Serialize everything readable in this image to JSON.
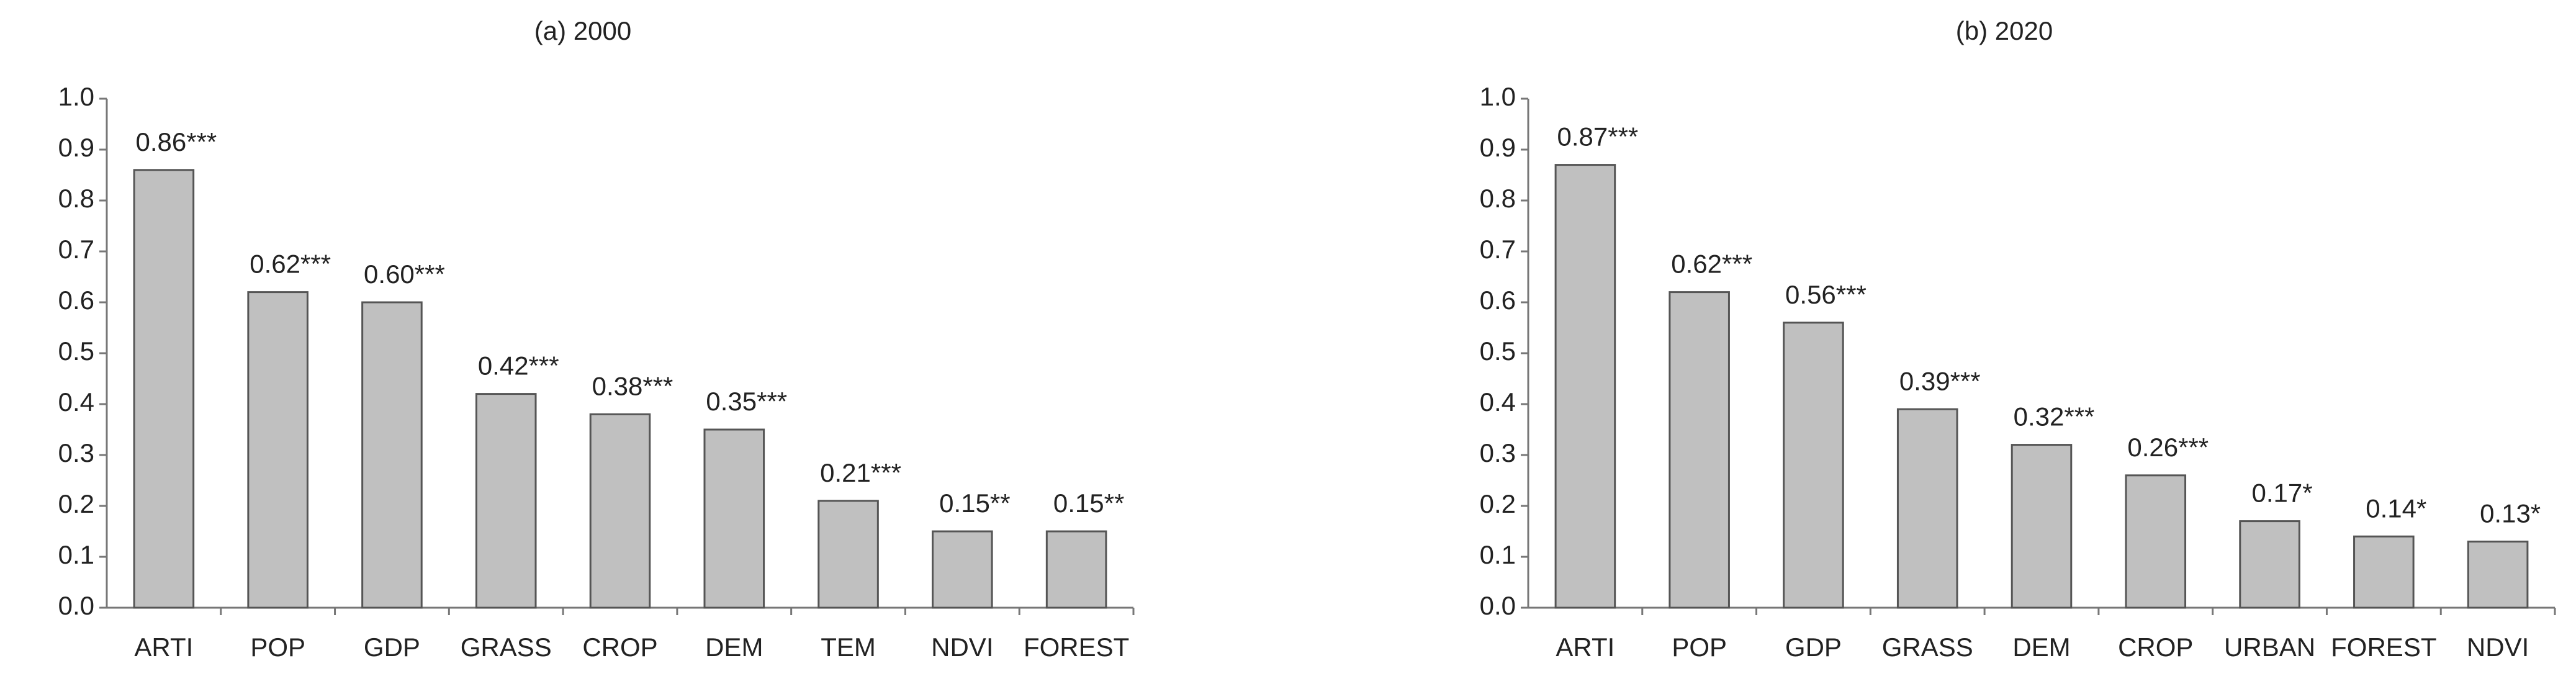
{
  "chart_data": [
    {
      "type": "bar",
      "title": "(a) 2000",
      "categories": [
        "ARTI",
        "POP",
        "GDP",
        "GRASS",
        "CROP",
        "DEM",
        "TEM",
        "NDVI",
        "FOREST"
      ],
      "values": [
        0.86,
        0.62,
        0.6,
        0.42,
        0.38,
        0.35,
        0.21,
        0.15,
        0.15
      ],
      "value_labels": [
        "0.86***",
        "0.62***",
        "0.60***",
        "0.42***",
        "0.38***",
        "0.35***",
        "0.21***",
        "0.15**",
        "0.15**"
      ],
      "color": "#c0c0c0",
      "ylim": [
        0,
        1
      ],
      "yticks": [
        {
          "value": 0,
          "label": "0.0"
        },
        0.1,
        0.2,
        0.3,
        0.4,
        0.5,
        0.6,
        0.7,
        0.8,
        0.9,
        {
          "value": 1,
          "label": "1.0"
        }
      ]
    },
    {
      "type": "bar",
      "title": "(b) 2020",
      "categories": [
        "ARTI",
        "POP",
        "GDP",
        "GRASS",
        "DEM",
        "CROP",
        "URBAN",
        "FOREST",
        "NDVI"
      ],
      "values": [
        0.87,
        0.62,
        0.56,
        0.39,
        0.32,
        0.26,
        0.17,
        0.14,
        0.13
      ],
      "value_labels": [
        "0.87***",
        "0.62***",
        "0.56***",
        "0.39***",
        "0.32***",
        "0.26***",
        "0.17*",
        "0.14*",
        "0.13*"
      ],
      "color": "#c0c0c0",
      "ylim": [
        0,
        1
      ],
      "yticks": [
        {
          "value": 0,
          "label": "0.0"
        },
        0.1,
        0.2,
        0.3,
        0.4,
        0.5,
        0.6,
        0.7,
        0.8,
        0.9,
        {
          "value": 1,
          "label": "1.0"
        }
      ]
    }
  ]
}
